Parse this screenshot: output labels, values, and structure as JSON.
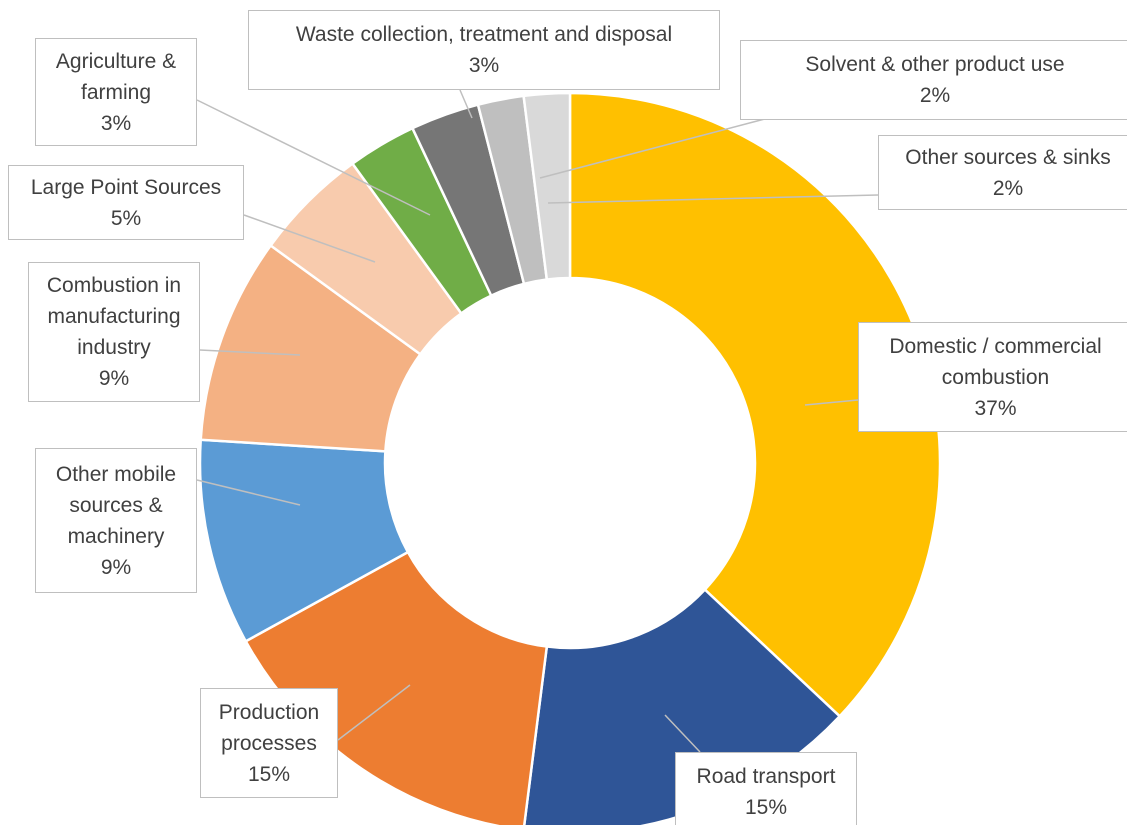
{
  "chart_data": {
    "type": "donut",
    "categories": [
      "Domestic / commercial combustion",
      "Road transport",
      "Production processes",
      "Other mobile sources & machinery",
      "Combustion in manufacturing industry",
      "Large Point Sources",
      "Agriculture & farming",
      "Waste collection, treatment and disposal",
      "Solvent & other product use",
      "Other sources & sinks"
    ],
    "values": [
      37,
      15,
      15,
      9,
      9,
      5,
      3,
      3,
      2,
      2
    ],
    "value_labels": [
      "37%",
      "15%",
      "15%",
      "9%",
      "9%",
      "5%",
      "3%",
      "3%",
      "2%",
      "2%"
    ],
    "colors": [
      "#FFC000",
      "#2F5597",
      "#ED7D31",
      "#5B9BD5",
      "#F4B183",
      "#F8CBAD",
      "#70AD47",
      "#767676",
      "#BFBFBF",
      "#D9D9D9"
    ]
  }
}
